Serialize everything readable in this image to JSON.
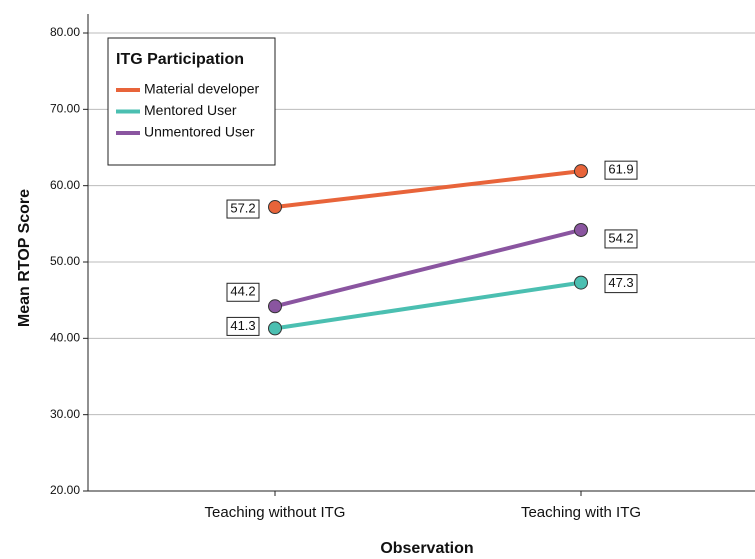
{
  "chart_data": {
    "type": "line",
    "categories": [
      "Teaching without ITG",
      "Teaching with ITG"
    ],
    "series": [
      {
        "name": "Material developer",
        "color": "#e8643a",
        "values": [
          57.2,
          61.9
        ]
      },
      {
        "name": "Mentored User",
        "color": "#4bbfb1",
        "values": [
          41.3,
          47.3
        ]
      },
      {
        "name": "Unmentored User",
        "color": "#8a55a0",
        "values": [
          44.2,
          54.2
        ]
      }
    ],
    "legend_title": "ITG Participation",
    "xlabel": "Observation",
    "ylabel": "Mean RTOP Score",
    "ylim": [
      20,
      80
    ],
    "yticks": [
      {
        "value": 20,
        "label": "20.00"
      },
      {
        "value": 30,
        "label": "30.00"
      },
      {
        "value": 40,
        "label": "40.00"
      },
      {
        "value": 50,
        "label": "50.00"
      },
      {
        "value": 60,
        "label": "60.00"
      },
      {
        "value": 70,
        "label": "70.00"
      },
      {
        "value": 80,
        "label": "80.00"
      }
    ],
    "grid": true,
    "legend": "upper left"
  }
}
